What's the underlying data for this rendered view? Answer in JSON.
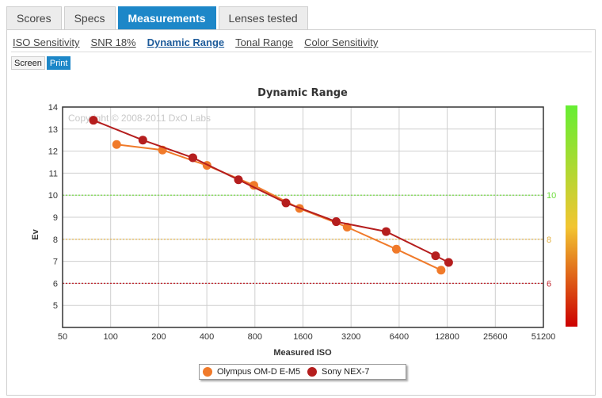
{
  "tabs": [
    {
      "label": "Scores"
    },
    {
      "label": "Specs"
    },
    {
      "label": "Measurements"
    },
    {
      "label": "Lenses tested"
    }
  ],
  "active_tab": "Measurements",
  "subnav": [
    {
      "label": "ISO Sensitivity"
    },
    {
      "label": "SNR 18%"
    },
    {
      "label": "Dynamic Range"
    },
    {
      "label": "Tonal Range"
    },
    {
      "label": "Color Sensitivity"
    }
  ],
  "active_subnav": "Dynamic Range",
  "toggle": {
    "screen": "Screen",
    "print": "Print",
    "active": "Print"
  },
  "colors": {
    "accent": "#1d87c8",
    "olympus": "#f07a2a",
    "sony": "#b51e1e"
  },
  "chart_data": {
    "type": "line",
    "title": "Dynamic Range",
    "xlabel": "Measured ISO",
    "ylabel": "Ev",
    "watermark": "Copyright © 2008-2011 DxO Labs",
    "x_scale": "log2",
    "xlim": [
      50,
      51200
    ],
    "ylim": [
      4,
      14
    ],
    "x_ticks": [
      "50",
      "100",
      "200",
      "400",
      "800",
      "1600",
      "3200",
      "6400",
      "12800",
      "25600",
      "51200"
    ],
    "y_ticks": [
      "5",
      "6",
      "7",
      "8",
      "9",
      "10",
      "11",
      "12",
      "13",
      "14"
    ],
    "grid": true,
    "legend_position": "bottom",
    "reference_lines": [
      {
        "value": 10,
        "label": "10",
        "color": "#6edc3c"
      },
      {
        "value": 8,
        "label": "8",
        "color": "#e3b041"
      },
      {
        "value": 6,
        "label": "6",
        "color": "#c0262e"
      }
    ],
    "color_scale": {
      "top": "#66ee33",
      "mid": "#f2c531",
      "bottom": "#cc0000"
    },
    "series": [
      {
        "name": "Olympus OM-D E-M5",
        "color": "#f07a2a",
        "x": [
          109,
          211,
          401,
          788,
          1523,
          3025,
          6148,
          11712
        ],
        "y": [
          12.3,
          12.05,
          11.35,
          10.45,
          9.4,
          8.55,
          7.55,
          6.6
        ]
      },
      {
        "name": "Sony NEX-7",
        "color": "#b51e1e",
        "x": [
          78,
          159,
          327,
          631,
          1252,
          2584,
          5305,
          10825,
          13061
        ],
        "y": [
          13.4,
          12.5,
          11.7,
          10.7,
          9.65,
          8.8,
          8.35,
          7.25,
          6.95
        ]
      }
    ]
  }
}
